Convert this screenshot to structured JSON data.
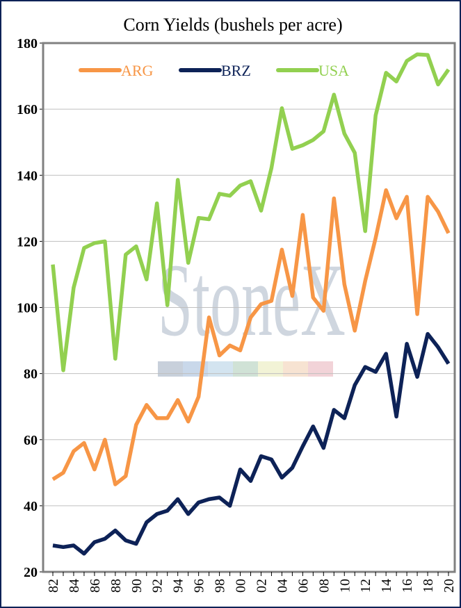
{
  "chart_data": {
    "type": "line",
    "title": "Corn Yields (bushels per acre)",
    "xlabel": "",
    "ylabel": "",
    "ylim": [
      20,
      180
    ],
    "yticks": [
      20,
      40,
      60,
      80,
      100,
      120,
      140,
      160,
      180
    ],
    "grid": true,
    "legend_position": "top",
    "watermark": "StoneX",
    "x": [
      "82",
      "83",
      "84",
      "85",
      "86",
      "87",
      "88",
      "89",
      "90",
      "91",
      "92",
      "93",
      "94",
      "95",
      "96",
      "97",
      "98",
      "99",
      "00",
      "01",
      "02",
      "03",
      "04",
      "05",
      "06",
      "07",
      "08",
      "09",
      "10",
      "11",
      "12",
      "13",
      "14",
      "15",
      "16",
      "17",
      "18",
      "19",
      "20"
    ],
    "xtick_labels": [
      "82",
      "84",
      "86",
      "88",
      "90",
      "92",
      "94",
      "96",
      "98",
      "00",
      "02",
      "04",
      "06",
      "08",
      "10",
      "12",
      "14",
      "16",
      "18",
      "20"
    ],
    "series": [
      {
        "name": "ARG",
        "color": "#f79646",
        "values": [
          48,
          50,
          56.5,
          59,
          51,
          60,
          46.5,
          49,
          64.5,
          70.5,
          66.5,
          66.5,
          72,
          65.5,
          73,
          97,
          85.5,
          88.5,
          87,
          97,
          101,
          102,
          117.5,
          103.5,
          128,
          103,
          99,
          133,
          107,
          93,
          108,
          121,
          135.5,
          127,
          133.5,
          98,
          133.5,
          129,
          122.5
        ]
      },
      {
        "name": "BRZ",
        "color": "#0d2257",
        "values": [
          28,
          27.5,
          28,
          25.5,
          29,
          30,
          32.5,
          29.5,
          28.5,
          35,
          37.5,
          38.5,
          42,
          37.5,
          41,
          42,
          42.5,
          40,
          51,
          47.5,
          55,
          54,
          48.5,
          51.5,
          58,
          64,
          57.5,
          69,
          66.5,
          76.5,
          82,
          80.5,
          86,
          67,
          89,
          79,
          92,
          88,
          83
        ]
      },
      {
        "name": "USA",
        "color": "#92d050",
        "values": [
          113,
          81,
          106,
          118,
          119.5,
          120,
          84.5,
          116,
          118.5,
          108.5,
          131.5,
          100.7,
          138.6,
          113.5,
          127.1,
          126.7,
          134.4,
          133.8,
          136.9,
          138.2,
          129.3,
          142.2,
          160.3,
          148,
          149.1,
          150.7,
          153.3,
          164.4,
          152.6,
          146.8,
          123.1,
          158.1,
          171,
          168.4,
          174.6,
          176.6,
          176.4,
          167.5,
          172
        ]
      }
    ]
  }
}
